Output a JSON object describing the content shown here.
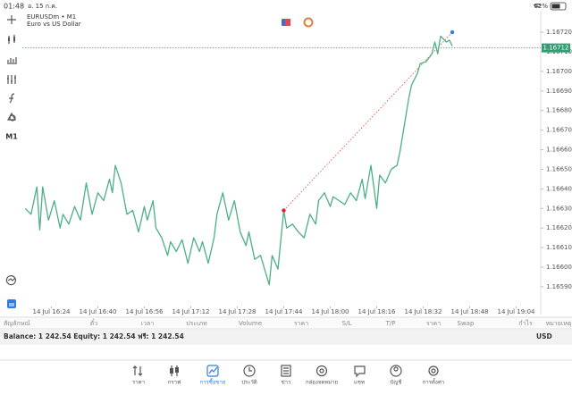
{
  "status": {
    "time": "01:48",
    "date": "อ. 15 ก.ค.",
    "battery": "62%"
  },
  "chart_data": {
    "type": "line",
    "title": "EURUSDm • M1",
    "subtitle": "Euro vs US Dollar",
    "timeframe": "M1",
    "color": "#4caf85",
    "x": [
      975,
      977,
      979,
      980,
      981,
      983,
      985,
      987,
      988,
      990,
      992,
      994,
      996,
      998,
      1000,
      1002,
      1004,
      1005,
      1006,
      1008,
      1010,
      1012,
      1014,
      1016,
      1017,
      1019,
      1020,
      1022,
      1024,
      1025,
      1027,
      1029,
      1031,
      1033,
      1035,
      1036,
      1038,
      1040,
      1041,
      1043,
      1045,
      1047,
      1049,
      1051,
      1052,
      1054,
      1056,
      1059,
      1060,
      1062,
      1064,
      1065,
      1067,
      1069,
      1071,
      1073,
      1075,
      1076,
      1078,
      1080,
      1081,
      1083,
      1085,
      1087,
      1089,
      1091,
      1092,
      1094,
      1096,
      1097,
      1099,
      1101,
      1103,
      1104,
      1105,
      1107,
      1108,
      1110,
      1111,
      1113,
      1115,
      1116,
      1117,
      1118,
      1120,
      1121,
      1122
    ],
    "values": [
      1.1663,
      1.16627,
      1.16641,
      1.16619,
      1.16641,
      1.16624,
      1.16634,
      1.1662,
      1.16627,
      1.16622,
      1.16631,
      1.16624,
      1.16643,
      1.16627,
      1.16638,
      1.16634,
      1.16645,
      1.16638,
      1.16652,
      1.16643,
      1.16627,
      1.16629,
      1.16618,
      1.16631,
      1.16624,
      1.16634,
      1.1662,
      1.16615,
      1.16606,
      1.16613,
      1.16608,
      1.16614,
      1.16602,
      1.16615,
      1.16608,
      1.16613,
      1.16602,
      1.16615,
      1.16627,
      1.16638,
      1.16624,
      1.16634,
      1.16618,
      1.16611,
      1.16618,
      1.16604,
      1.16606,
      1.16591,
      1.16606,
      1.16599,
      1.16629,
      1.1662,
      1.16622,
      1.16618,
      1.16615,
      1.16627,
      1.16622,
      1.16634,
      1.16638,
      1.16631,
      1.16636,
      1.16634,
      1.16632,
      1.16638,
      1.16634,
      1.16645,
      1.16635,
      1.16652,
      1.1663,
      1.16647,
      1.16643,
      1.1665,
      1.16652,
      1.16659,
      1.16668,
      1.16686,
      1.16693,
      1.16699,
      1.16704,
      1.16705,
      1.16709,
      1.16715,
      1.16709,
      1.16718,
      1.16715,
      1.16716,
      1.16713
    ],
    "current_price": 1.16712,
    "trade": {
      "open": {
        "x": 1064,
        "price": 1.16629
      },
      "close": {
        "x": 1122,
        "price": 1.1672
      }
    },
    "xlim": [
      974,
      1152
    ],
    "xticks": [
      {
        "value": 984,
        "label": "14 Jul 16:24"
      },
      {
        "value": 1000,
        "label": "14 Jul 16:40"
      },
      {
        "value": 1016,
        "label": "14 Jul 16:56"
      },
      {
        "value": 1032,
        "label": "14 Jul 17:12"
      },
      {
        "value": 1048,
        "label": "14 Jul 17:28"
      },
      {
        "value": 1064,
        "label": "14 Jul 17:44"
      },
      {
        "value": 1080,
        "label": "14 Jul 18:00"
      },
      {
        "value": 1096,
        "label": "14 Jul 18:16"
      },
      {
        "value": 1112,
        "label": "14 Jul 18:32"
      },
      {
        "value": 1128,
        "label": "14 Jul 18:48"
      },
      {
        "value": 1144,
        "label": "14 Jul 19:04"
      }
    ],
    "ylim": [
      1.16579,
      1.16731
    ],
    "yticks": [
      {
        "value": 1.1672,
        "label": "1.16720"
      },
      {
        "value": 1.1671,
        "label": "1.16710"
      },
      {
        "value": 1.167,
        "label": "1.16700"
      },
      {
        "value": 1.1669,
        "label": "1.16690"
      },
      {
        "value": 1.1668,
        "label": "1.16680"
      },
      {
        "value": 1.1667,
        "label": "1.16670"
      },
      {
        "value": 1.1666,
        "label": "1.16660"
      },
      {
        "value": 1.1665,
        "label": "1.16650"
      },
      {
        "value": 1.1664,
        "label": "1.16640"
      },
      {
        "value": 1.1663,
        "label": "1.16630"
      },
      {
        "value": 1.1662,
        "label": "1.16620"
      },
      {
        "value": 1.1661,
        "label": "1.16610"
      },
      {
        "value": 1.166,
        "label": "1.16600"
      },
      {
        "value": 1.1659,
        "label": "1.16590"
      }
    ]
  },
  "table": {
    "columns": [
      "สัญลักษณ์",
      "ตั๋ว",
      "เวลา",
      "ประเภท",
      "Volume",
      "ราคา",
      "S/L",
      "T/P",
      "ราคา",
      "Swap",
      "กำไร",
      "หมายเหตุ"
    ]
  },
  "account": {
    "summary": "Balance: 1 242.54 Equity: 1 242.54 ฟรี: 1 242.54",
    "currency": "USD"
  },
  "tabs": {
    "labels": [
      "ราคา",
      "กราฟ",
      "การซื้อขาย",
      "ประวัติ",
      "ข่าว",
      "กล่องจดหมาย",
      "แชท",
      "บัญชี",
      "การตั้งค่า"
    ],
    "active": 2
  }
}
